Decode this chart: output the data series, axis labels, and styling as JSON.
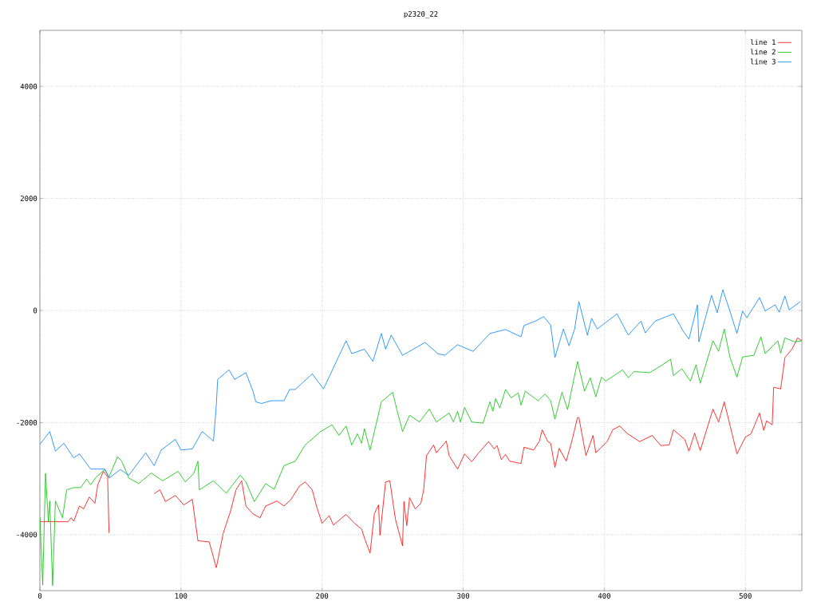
{
  "chart_data": {
    "type": "line",
    "title": "p2320_22",
    "xlim": [
      0,
      540
    ],
    "ylim": [
      -5000,
      5000
    ],
    "xticks": [
      0,
      100,
      200,
      300,
      400,
      500
    ],
    "yticks": [
      -4000,
      -2000,
      0,
      2000,
      4000
    ],
    "grid": true,
    "legend": "top right",
    "marker": "none",
    "line_style": "solid",
    "series": [
      {
        "name": "line 1",
        "color": "#ff0000",
        "x": [
          0,
          20,
          22,
          24,
          28,
          31,
          35,
          39,
          41,
          45,
          48,
          49,
          50,
          65,
          80,
          81,
          85,
          89,
          96,
          102,
          108,
          112,
          120,
          125,
          130,
          135,
          139,
          143,
          146,
          151,
          156,
          160,
          168,
          173,
          178,
          184,
          188,
          193,
          196,
          200,
          205,
          208,
          217,
          223,
          228,
          230,
          234,
          237,
          240,
          241,
          245,
          248,
          252,
          257,
          258,
          260,
          262,
          266,
          270,
          272,
          274,
          279,
          281,
          288,
          290,
          296,
          301,
          306,
          311,
          318,
          322,
          324,
          327,
          330,
          333,
          341,
          343,
          350,
          354,
          356,
          360,
          362,
          365,
          368,
          373,
          377,
          381,
          382,
          387,
          392,
          394,
          402,
          406,
          411,
          416,
          425,
          434,
          440,
          446,
          449,
          457,
          460,
          464,
          468,
          477,
          481,
          485,
          489,
          494,
          500,
          504,
          510,
          513,
          515,
          519,
          520,
          525,
          528,
          533,
          537,
          540
        ],
        "values": [
          -3770,
          -3770,
          -3700,
          -3760,
          -3490,
          -3540,
          -3330,
          -3440,
          -3110,
          -2870,
          -2970,
          -3970,
          null,
          null,
          null,
          -3270,
          -3200,
          -3410,
          -3300,
          -3470,
          -3370,
          -4110,
          -4130,
          -4590,
          -3970,
          -3590,
          -3200,
          -3040,
          -3490,
          -3630,
          -3700,
          -3490,
          -3400,
          -3490,
          -3370,
          -3130,
          -3060,
          -3200,
          -3490,
          -3800,
          -3660,
          -3830,
          -3640,
          -3800,
          -3900,
          -4060,
          -4330,
          -3630,
          -3470,
          -4010,
          -3060,
          -3040,
          -3730,
          -4200,
          -3410,
          -3840,
          -3340,
          -3540,
          -3440,
          -3200,
          -2590,
          -2400,
          -2540,
          -2330,
          -2590,
          -2830,
          -2560,
          -2700,
          -2540,
          -2340,
          -2470,
          -2410,
          -2660,
          -2570,
          -2690,
          -2730,
          -2440,
          -2490,
          -2330,
          -2130,
          -2340,
          -2370,
          -2800,
          -2460,
          -2690,
          -2330,
          -1910,
          -1910,
          -2590,
          -2230,
          -2540,
          -2340,
          -2130,
          -2060,
          -2190,
          -2340,
          -2230,
          -2410,
          -2400,
          -2130,
          -2300,
          -2510,
          -2190,
          -2500,
          -1760,
          -1990,
          -1630,
          -2040,
          -2560,
          -2260,
          -2200,
          -1830,
          -2140,
          -1970,
          -2040,
          -1370,
          -1400,
          -840,
          -690,
          -490,
          -540
        ]
      },
      {
        "name": "line 2",
        "color": "#00c000",
        "x": [
          0,
          2,
          4,
          6,
          7,
          9,
          11,
          16,
          19,
          24,
          29,
          33,
          36,
          40,
          46,
          49,
          55,
          58,
          63,
          70,
          79,
          87,
          98,
          103,
          109,
          112,
          113,
          123,
          132,
          142,
          146,
          152,
          160,
          166,
          173,
          181,
          188,
          199,
          207,
          212,
          217,
          221,
          225,
          228,
          230,
          234,
          242,
          250,
          253,
          257,
          262,
          269,
          276,
          281,
          290,
          293,
          296,
          298,
          301,
          306,
          314,
          319,
          321,
          323,
          326,
          330,
          334,
          339,
          341,
          344,
          353,
          358,
          362,
          365,
          370,
          374,
          381,
          386,
          390,
          394,
          398,
          401,
          413,
          417,
          421,
          432,
          440,
          447,
          449,
          455,
          461,
          465,
          468,
          477,
          481,
          485,
          489,
          494,
          498,
          506,
          511,
          514,
          523,
          525,
          528,
          535,
          540
        ],
        "values": [
          -3690,
          -4900,
          -2910,
          -3770,
          -3400,
          -4910,
          -3400,
          -3700,
          -3200,
          -3160,
          -3160,
          -3010,
          -3110,
          -2970,
          -2840,
          -2970,
          -2610,
          -2690,
          -2990,
          -3090,
          -2900,
          -3040,
          -2870,
          -3060,
          -2910,
          -2690,
          -3200,
          -3040,
          -3260,
          -2940,
          -3060,
          -3410,
          -3090,
          -3190,
          -2770,
          -2690,
          -2400,
          -2160,
          -2040,
          -2230,
          -2060,
          -2400,
          -2200,
          -2370,
          -2110,
          -2490,
          -1630,
          -1460,
          -1770,
          -2160,
          -1870,
          -1990,
          -1760,
          -1990,
          -1830,
          -1990,
          -1800,
          -1990,
          -1730,
          -1990,
          -2010,
          -1630,
          -1800,
          -1570,
          -1740,
          -1410,
          -1560,
          -1470,
          -1690,
          -1440,
          -1610,
          -1490,
          -1610,
          -1940,
          -1460,
          -1770,
          -910,
          -1440,
          -1200,
          -1540,
          -1190,
          -1260,
          -1060,
          -1200,
          -1090,
          -1110,
          -990,
          -870,
          -1160,
          -1040,
          -1260,
          -970,
          -1300,
          -540,
          -730,
          -330,
          -830,
          -1190,
          -830,
          -800,
          -470,
          -770,
          -540,
          -760,
          -490,
          -560,
          -540
        ]
      },
      {
        "name": "line 3",
        "color": "#0080ff",
        "x": [
          0,
          7,
          11,
          17,
          24,
          28,
          36,
          46,
          49,
          57,
          63,
          75,
          81,
          86,
          96,
          100,
          108,
          115,
          123,
          125,
          126,
          134,
          138,
          146,
          151,
          153,
          157,
          164,
          173,
          177,
          181,
          193,
          201,
          217,
          221,
          230,
          236,
          242,
          245,
          249,
          257,
          273,
          282,
          287,
          296,
          307,
          319,
          330,
          341,
          343,
          351,
          357,
          362,
          365,
          371,
          375,
          379,
          382,
          388,
          391,
          395,
          409,
          417,
          426,
          429,
          436,
          449,
          456,
          460,
          466,
          467,
          476,
          480,
          484,
          489,
          494,
          498,
          501,
          510,
          514,
          521,
          524,
          528,
          531,
          539
        ],
        "values": [
          -2390,
          -2160,
          -2510,
          -2370,
          -2630,
          -2560,
          -2830,
          -2830,
          -2990,
          -2840,
          -2940,
          -2540,
          -2770,
          -2490,
          -2300,
          -2490,
          -2470,
          -2160,
          -2330,
          -1700,
          -1230,
          -1060,
          -1230,
          -1110,
          -1440,
          -1630,
          -1660,
          -1610,
          -1610,
          -1410,
          -1410,
          -1130,
          -1400,
          -540,
          -770,
          -690,
          -910,
          -410,
          -690,
          -440,
          -800,
          -570,
          -770,
          -800,
          -610,
          -730,
          -410,
          -340,
          -470,
          -270,
          -190,
          -110,
          -260,
          -840,
          -330,
          -630,
          -330,
          160,
          -440,
          -140,
          -330,
          -60,
          -440,
          -190,
          -400,
          -190,
          -60,
          -370,
          -510,
          100,
          -560,
          270,
          -40,
          370,
          -10,
          -410,
          -10,
          -130,
          230,
          -10,
          100,
          -30,
          260,
          10,
          160
        ]
      }
    ]
  }
}
